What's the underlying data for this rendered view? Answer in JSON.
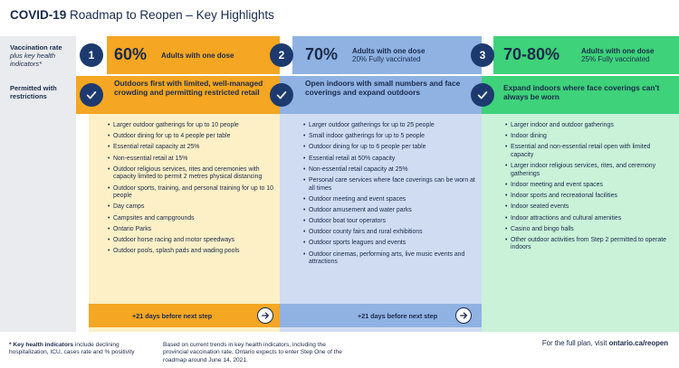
{
  "header": {
    "title_bold": "COVID-19",
    "title_rest": " Roadmap to Reopen – Key Highlights"
  },
  "rows": {
    "vaccination_label": "Vaccination rate",
    "vaccination_sub": "plus key health indicators*",
    "permitted_label": "Permitted with restrictions"
  },
  "steps": [
    {
      "number": "1",
      "pct": "60%",
      "pct_main": "Adults with one dose",
      "pct_sub": "",
      "headline": "Outdoors first with limited, well-managed crowding and permitting restricted retail",
      "items": [
        "Larger outdoor gatherings for up to 10 people",
        "Outdoor dining for up to 4 people per table",
        "Essential retail capacity at 25%",
        "Non-essential retail at 15%",
        "Outdoor religious services, rites and ceremonies with capacity limited to permit 2 metres physical distancing",
        "Outdoor sports, training, and personal training for up to 10 people",
        "Day camps",
        "Campsites and campgrounds",
        "Ontario Parks",
        "Outdoor horse racing and motor speedways",
        "Outdoor pools, splash pads and wading pools"
      ],
      "footer": "+21 days before next step"
    },
    {
      "number": "2",
      "pct": "70%",
      "pct_main": "Adults with one dose",
      "pct_sub": "20% Fully vaccinated",
      "headline": "Open indoors with small numbers and face coverings and expand outdoors",
      "items": [
        "Larger outdoor gatherings for up to 25 people",
        "Small indoor gatherings for up to 5 people",
        "Outdoor dining for up to 6 people per table",
        "Essential retail at 50% capacity",
        "Non-essential retail capacity at 25%",
        "Personal care services where face coverings can be worn at all times",
        "Outdoor meeting and event spaces",
        "Outdoor amusement and water parks",
        "Outdoor boat tour operators",
        "Outdoor county fairs and rural exhibitions",
        "Outdoor sports leagues and events",
        "Outdoor cinemas, performing arts, live music events and attractions"
      ],
      "footer": "+21 days before next step"
    },
    {
      "number": "3",
      "pct": "70-80%",
      "pct_main": "Adults with one dose",
      "pct_sub": "25% Fully vaccinated",
      "headline": "Expand indoors where face coverings can't always be worn",
      "items": [
        "Larger indoor and outdoor gatherings",
        "Indoor dining",
        "Essential and non-essential retail open with limited capacity",
        "Larger indoor religious services, rites, and ceremony gatherings",
        "Indoor meeting and event spaces",
        "Indoor sports and recreational facilities",
        "Indoor seated events",
        "Indoor attractions and cultural amenities",
        "Casino and bingo halls",
        "Other outdoor activities from Step 2 permitted to operate indoors"
      ],
      "footer": ""
    }
  ],
  "footnotes": {
    "key_bold": "* Key health indicators",
    "key_rest": " include declining hospitalization, ICU, cases rate and % positivity",
    "trend": "Based on current trends in key health indicators, including the provincial vaccination rate, Ontario expects to enter Step One of the roadmap around June 14, 2021.",
    "plan_text": "For the full plan, visit ",
    "plan_link": "ontario.ca/reopen"
  },
  "colors": {
    "step1_band": "#f5a623",
    "step1_body": "#fdf0c7",
    "step2_band": "#8fb2e3",
    "step2_body": "#cfdcf2",
    "step3_band": "#3ed27a",
    "step3_body": "#c9f2d9",
    "navy": "#1d3a6e"
  }
}
